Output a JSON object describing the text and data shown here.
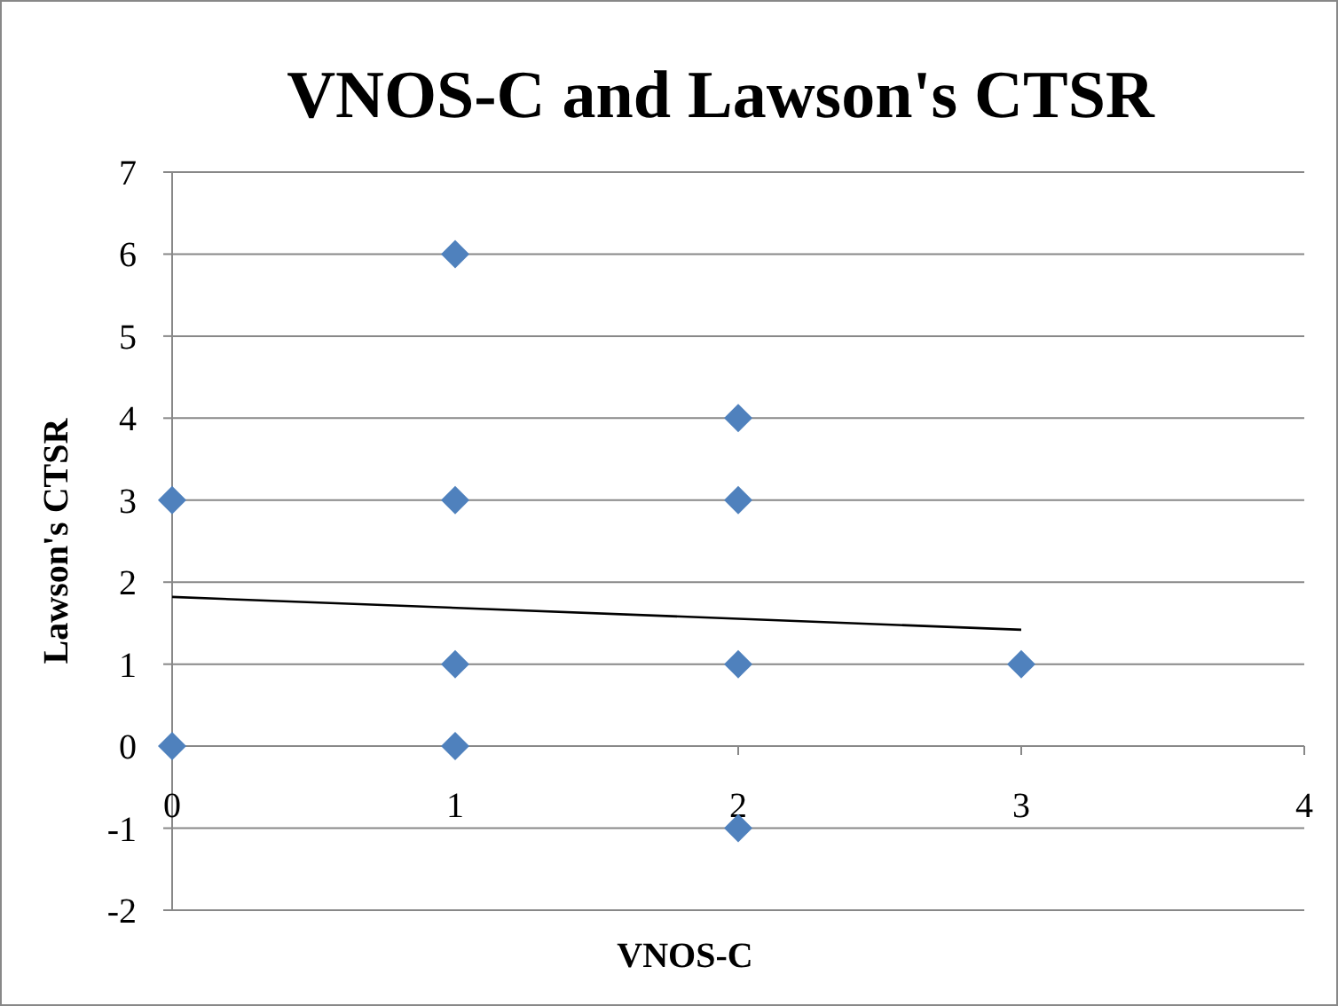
{
  "chart_data": {
    "type": "scatter",
    "title": "VNOS-C and Lawson's CTSR",
    "xlabel": "VNOS-C",
    "ylabel": "Lawson's CTSR",
    "xlim": [
      0,
      4
    ],
    "xticks": [
      0,
      1,
      2,
      3,
      4
    ],
    "ylim": [
      -2,
      7
    ],
    "yticks": [
      -2,
      -1,
      0,
      1,
      2,
      3,
      4,
      5,
      6,
      7
    ],
    "grid": "y",
    "marker": "diamond",
    "series": [
      {
        "color": "#4f81bd",
        "x": [
          0,
          0,
          1,
          1,
          1,
          1,
          2,
          2,
          2,
          2,
          3
        ],
        "values": [
          3,
          0,
          6,
          3,
          1,
          0,
          4,
          3,
          1,
          -1,
          1
        ]
      },
      {
        "type": "line",
        "color": "#000000",
        "marker": "none",
        "x": [
          0,
          3
        ],
        "values": [
          1.82,
          1.42
        ]
      }
    ]
  }
}
